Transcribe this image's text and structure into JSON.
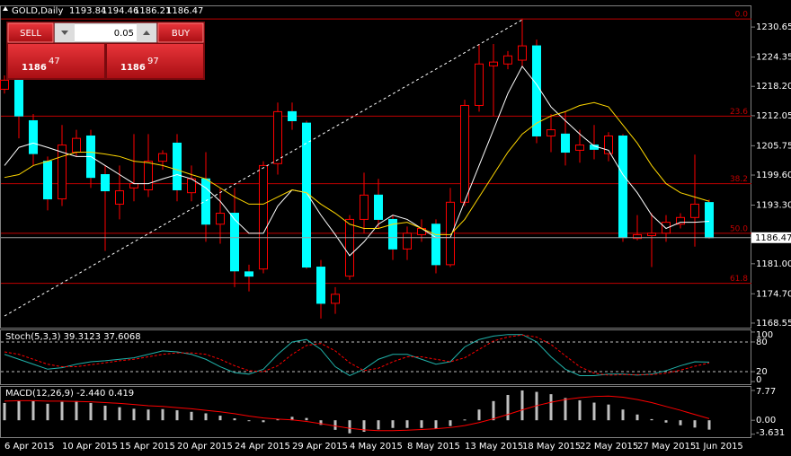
{
  "header": {
    "symbol": "GOLD,Daily"
  },
  "trade_panel": {
    "sell": "SELL",
    "lot": "0.05",
    "buy": "BUY",
    "bid_prefix": "1186",
    "bid_pips": "47",
    "ask_prefix": "1186",
    "ask_pips": "97"
  },
  "chart_data": [
    {
      "type": "candlestick",
      "categories": [
        "6 Apr 2015",
        null,
        null,
        null,
        "10 Apr 2015",
        null,
        null,
        null,
        "15 Apr 2015",
        null,
        null,
        null,
        "20 Apr 2015",
        null,
        null,
        null,
        "24 Apr 2015",
        null,
        null,
        null,
        "29 Apr 2015",
        null,
        null,
        null,
        "4 May 2015",
        null,
        null,
        null,
        "8 May 2015",
        null,
        null,
        null,
        "13 May 2015",
        null,
        null,
        null,
        "18 May 2015",
        null,
        null,
        null,
        "22 May 2015",
        null,
        null,
        null,
        "27 May 2015",
        null,
        null,
        null,
        "1 Jun 2015",
        null
      ],
      "open": [
        1217.6,
        1219.5,
        1211.0,
        1202.5,
        1194.6,
        1204.4,
        1207.8,
        1199.7,
        1193.5,
        1196.9,
        1196.5,
        1202.5,
        1206.3,
        1195.9,
        1198.8,
        1189.3,
        1191.6,
        1179.3,
        1179.9,
        1202.0,
        1212.9,
        1210.5,
        1180.3,
        1172.7,
        1178.4,
        1190.3,
        1195.4,
        1190.3,
        1184.1,
        1187.1,
        1189.3,
        1180.8,
        1193.9,
        1214.2,
        1222.5,
        1222.9,
        1223.7,
        1226.7,
        1207.8,
        1208.2,
        1204.8,
        1205.9,
        1204.1,
        1207.8,
        1186.3,
        1186.9,
        1187.4,
        1189.3,
        1190.7,
        1193.84
      ],
      "high": [
        1220.5,
        1220.5,
        1212.4,
        1203.5,
        1210.1,
        1209.1,
        1209.1,
        1201.6,
        1201.6,
        1208.2,
        1208.2,
        1204.8,
        1208.2,
        1201.6,
        1204.4,
        1196.9,
        1196.9,
        1180.8,
        1202.5,
        1214.8,
        1214.8,
        1211.0,
        1181.8,
        1176.1,
        1191.2,
        1200.1,
        1198.8,
        1191.2,
        1188.8,
        1190.3,
        1190.3,
        1196.9,
        1215.4,
        1227.1,
        1227.1,
        1225.6,
        1232.4,
        1228.0,
        1212.4,
        1212.9,
        1209.1,
        1210.1,
        1208.6,
        1208.2,
        1191.2,
        1191.6,
        1191.2,
        1191.6,
        1203.9,
        1194.46
      ],
      "low": [
        1216.7,
        1207.3,
        1201.6,
        1192.2,
        1193.1,
        1203.5,
        1196.9,
        1183.7,
        1190.3,
        1194.1,
        1195.0,
        1200.7,
        1194.1,
        1194.1,
        1185.6,
        1185.2,
        1176.1,
        1175.2,
        1179.0,
        1199.7,
        1209.1,
        1179.9,
        1169.5,
        1170.5,
        1177.6,
        1187.4,
        1188.4,
        1181.8,
        1181.8,
        1185.6,
        1179.0,
        1180.3,
        1193.1,
        1212.9,
        1212.0,
        1221.8,
        1222.4,
        1206.3,
        1204.4,
        1201.6,
        1202.2,
        1202.9,
        1202.5,
        1185.6,
        1185.9,
        1180.3,
        1185.6,
        1188.4,
        1184.6,
        1186.21
      ],
      "close": [
        1219.5,
        1212.0,
        1204.1,
        1194.6,
        1205.9,
        1207.3,
        1199.1,
        1196.3,
        1196.3,
        1197.8,
        1202.5,
        1204.1,
        1196.5,
        1198.8,
        1189.3,
        1191.6,
        1179.5,
        1178.4,
        1201.6,
        1212.9,
        1211.0,
        1180.3,
        1172.7,
        1174.6,
        1190.3,
        1195.4,
        1190.3,
        1184.1,
        1187.4,
        1188.4,
        1180.8,
        1193.9,
        1214.2,
        1222.9,
        1223.3,
        1224.6,
        1226.7,
        1207.8,
        1209.1,
        1204.4,
        1205.9,
        1205.0,
        1207.8,
        1186.5,
        1187.1,
        1187.4,
        1189.7,
        1190.7,
        1193.5,
        1186.47
      ],
      "up_color": "#000000",
      "up_edge": "#ff0000",
      "down_color": "#00ffff",
      "wick_color": "#ff0000",
      "lines": [
        {
          "color": "#ffffff",
          "values": [
            1201.6,
            1205.4,
            1206.3,
            1205.4,
            1204.4,
            1203.5,
            1203.5,
            1201.6,
            1199.7,
            1197.8,
            1197.8,
            1198.8,
            1199.7,
            1198.8,
            1196.9,
            1194.1,
            1190.3,
            1187.4,
            1187.4,
            1193.1,
            1196.5,
            1195.9,
            1191.2,
            1187.1,
            1182.7,
            1185.6,
            1189.3,
            1191.2,
            1190.3,
            1188.4,
            1186.5,
            1186.5,
            1194.1,
            1201.6,
            1209.1,
            1216.7,
            1222.4,
            1218.6,
            1213.9,
            1211.0,
            1208.2,
            1205.7,
            1204.8,
            1199.7,
            1195.9,
            1191.2,
            1188.4,
            1189.7,
            1189.7,
            1189.9
          ]
        },
        {
          "color": "#ffd700",
          "values": [
            1199.1,
            1199.7,
            1201.6,
            1202.5,
            1203.5,
            1204.4,
            1204.4,
            1204.0,
            1203.5,
            1202.5,
            1202.2,
            1201.6,
            1200.7,
            1199.7,
            1198.8,
            1196.9,
            1195.0,
            1193.5,
            1193.5,
            1195.0,
            1196.5,
            1195.9,
            1193.5,
            1191.6,
            1189.3,
            1188.4,
            1188.4,
            1189.3,
            1189.7,
            1188.4,
            1187.1,
            1187.1,
            1190.3,
            1195.0,
            1199.7,
            1204.4,
            1208.2,
            1210.5,
            1212.0,
            1212.9,
            1214.2,
            1214.8,
            1213.9,
            1210.1,
            1206.3,
            1201.6,
            1197.8,
            1195.9,
            1195.0,
            1194.1
          ]
        }
      ],
      "levels": [
        {
          "label": "0.0",
          "value": 1232.35
        },
        {
          "label": "23.6",
          "value": 1211.97
        },
        {
          "label": "38.2",
          "value": 1197.8
        },
        {
          "label": "50.0",
          "value": 1187.4
        },
        {
          "label": "61.8",
          "value": 1176.9
        }
      ],
      "level_color": "#c00000",
      "ylim": [
        1167.6,
        1235.0
      ],
      "yticks": [
        1230.65,
        1224.35,
        {
          "value": 1218.2,
          "label": "1218.20"
        },
        1212.05,
        1205.75,
        {
          "value": 1199.6,
          "label": "1199.60"
        },
        {
          "value": 1193.3,
          "label": "1193.30"
        },
        {
          "value": 1181,
          "label": "1181.00"
        },
        {
          "value": 1174.7,
          "label": "1174.70"
        },
        1168.55
      ]
    },
    {
      "type": "line",
      "title": "Stoch(5,3,3)",
      "series": [
        {
          "color": "#20b2aa",
          "values": [
            55,
            45,
            35,
            25,
            28,
            35,
            40,
            42,
            45,
            48,
            55,
            62,
            60,
            55,
            45,
            30,
            18,
            15,
            25,
            55,
            80,
            85,
            65,
            30,
            12,
            25,
            45,
            55,
            55,
            45,
            35,
            40,
            70,
            85,
            92,
            95,
            95,
            80,
            50,
            25,
            12,
            12,
            15,
            15,
            13,
            15,
            22,
            32,
            40,
            39.3123
          ]
        },
        {
          "color": "#ff0000",
          "dash": true,
          "values": [
            60,
            55,
            45,
            35,
            30,
            30,
            34,
            38,
            42,
            45,
            50,
            55,
            58,
            58,
            55,
            45,
            32,
            22,
            20,
            32,
            55,
            73,
            77,
            62,
            38,
            22,
            27,
            40,
            50,
            50,
            45,
            40,
            48,
            65,
            82,
            90,
            94,
            90,
            75,
            52,
            30,
            17,
            13,
            14,
            14,
            14,
            17,
            23,
            31,
            37.6068
          ]
        }
      ],
      "levels": [
        80,
        20
      ],
      "ylim": [
        -5.3,
        103.5
      ],
      "yticks": [
        100,
        80,
        20,
        0
      ]
    },
    {
      "type": "bar",
      "title": "MACD(12,26,9) -2.440 0.419",
      "color": "#c0c0c0",
      "values": [
        4.5,
        5.0,
        5.0,
        4.3,
        4.8,
        5.0,
        4.5,
        3.8,
        3.4,
        3.0,
        2.8,
        2.9,
        2.6,
        2.2,
        1.8,
        1.2,
        0.5,
        -0.2,
        -0.5,
        0.4,
        0.9,
        0.6,
        -1.2,
        -2.5,
        -3.4,
        -3.0,
        -2.4,
        -2.0,
        -2.0,
        -2.0,
        -2.2,
        -1.5,
        0.2,
        2.8,
        5.0,
        6.6,
        7.77,
        7.4,
        6.8,
        5.8,
        5.2,
        4.6,
        4.1,
        2.8,
        1.5,
        0.3,
        -0.6,
        -1.3,
        -1.9,
        -2.44
      ],
      "series": [
        {
          "color": "#ff0000",
          "values": [
            5.0,
            5.1,
            5.1,
            5.0,
            5.0,
            4.9,
            4.8,
            4.6,
            4.4,
            4.1,
            3.8,
            3.6,
            3.3,
            3.0,
            2.6,
            2.2,
            1.7,
            1.1,
            0.6,
            0.3,
            0.1,
            -0.3,
            -0.9,
            -1.5,
            -2.1,
            -2.5,
            -2.7,
            -2.7,
            -2.6,
            -2.4,
            -2.2,
            -1.9,
            -1.4,
            -0.6,
            0.4,
            1.5,
            2.7,
            3.8,
            4.7,
            5.4,
            5.9,
            6.2,
            6.3,
            6.0,
            5.4,
            4.6,
            3.6,
            2.6,
            1.5,
            0.419
          ]
        }
      ],
      "ylim": [
        -4.4,
        8.7
      ],
      "yticks": [
        7.77,
        {
          "value": 0,
          "label": "0.00"
        },
        -3.631
      ]
    }
  ]
}
